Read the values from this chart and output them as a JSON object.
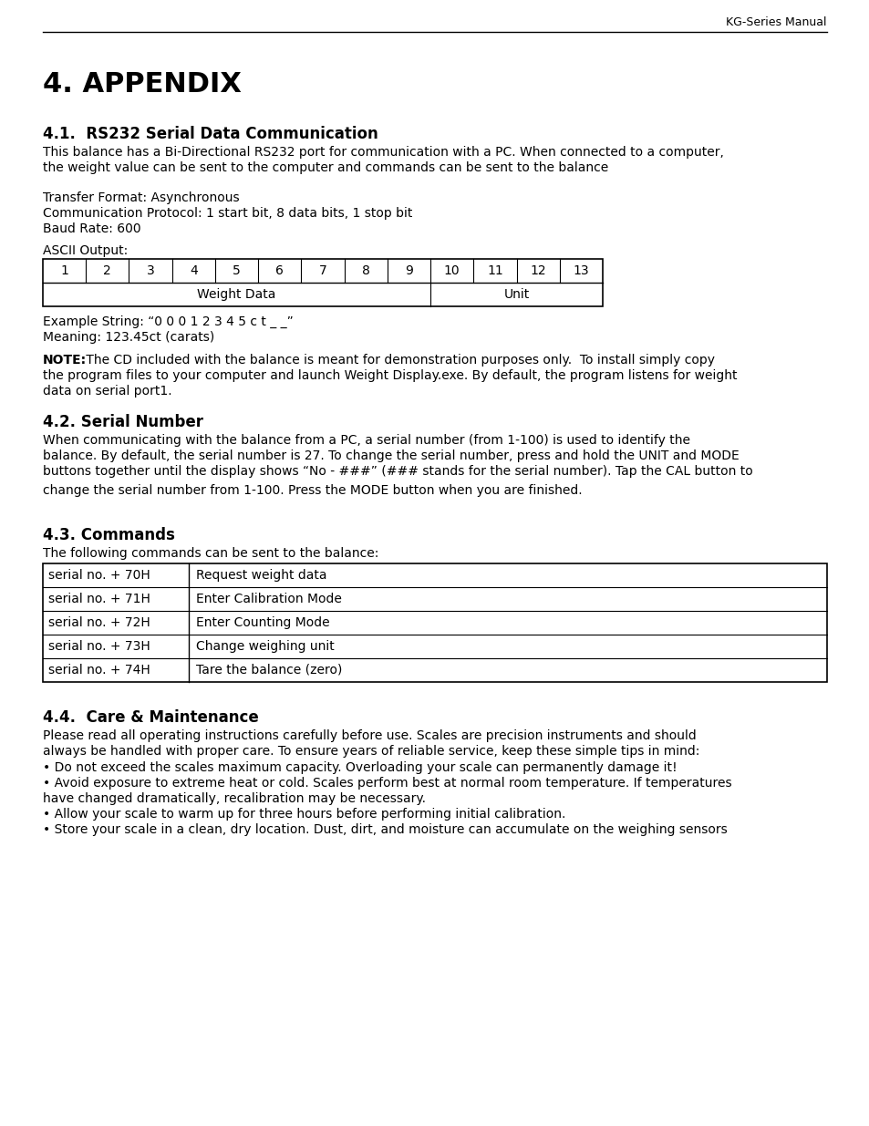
{
  "page_header": "KG-Series Manual",
  "title": "4. APPENDIX",
  "section_41_title": "4.1.  RS232 Serial Data Communication",
  "section_41_body1": "This balance has a Bi-Directional RS232 port for communication with a PC. When connected to a computer,",
  "section_41_body2": "the weight value can be sent to the computer and commands can be sent to the balance",
  "section_41_body3": "Transfer Format: Asynchronous",
  "section_41_body4": "Communication Protocol: 1 start bit, 8 data bits, 1 stop bit",
  "section_41_body5": "Baud Rate: 600",
  "ascii_label": "ASCII Output:",
  "ascii_cols": [
    "1",
    "2",
    "3",
    "4",
    "5",
    "6",
    "7",
    "8",
    "9",
    "10",
    "11",
    "12",
    "13"
  ],
  "ascii_weight_label": "Weight Data",
  "ascii_unit_label": "Unit",
  "example_string": "Example String: “0 0 0 1 2 3 4 5 c t _ _”",
  "meaning": "Meaning: 123.45ct (carats)",
  "note_bold": "NOTE:",
  "note_line1": " The CD included with the balance is meant for demonstration purposes only.  To install simply copy",
  "note_line2": "the program files to your computer and launch Weight Display.exe. By default, the program listens for weight",
  "note_line3": "data on serial port1.",
  "section_42_title": "4.2. Serial Number",
  "section_42_body1": "When communicating with the balance from a PC, a serial number (from 1-100) is used to identify the",
  "section_42_body2": "balance. By default, the serial number is 27. To change the serial number, press and hold the UNIT and MODE",
  "section_42_body3": "buttons together until the display shows “No - ###” (### stands for the serial number). Tap the CAL button to",
  "section_42_body4": "change the serial number from 1-100. Press the MODE button when you are finished.",
  "section_43_title": "4.3. Commands",
  "section_43_intro": "The following commands can be sent to the balance:",
  "commands": [
    [
      "serial no. + 70H",
      "Request weight data"
    ],
    [
      "serial no. + 71H",
      "Enter Calibration Mode"
    ],
    [
      "serial no. + 72H",
      "Enter Counting Mode"
    ],
    [
      "serial no. + 73H",
      "Change weighing unit"
    ],
    [
      "serial no. + 74H",
      "Tare the balance (zero)"
    ]
  ],
  "section_44_title": "4.4.  Care & Maintenance",
  "section_44_body1": "Please read all operating instructions carefully before use. Scales are precision instruments and should",
  "section_44_body2": "always be handled with proper care. To ensure years of reliable service, keep these simple tips in mind:",
  "section_44_bullet1": "• Do not exceed the scales maximum capacity. Overloading your scale can permanently damage it!",
  "section_44_bullet2a": "• Avoid exposure to extreme heat or cold. Scales perform best at normal room temperature. If temperatures",
  "section_44_bullet2b": "have changed dramatically, recalibration may be necessary.",
  "section_44_bullet3": "• Allow your scale to warm up for three hours before performing initial calibration.",
  "section_44_bullet4": "• Store your scale in a clean, dry location. Dust, dirt, and moisture can accumulate on the weighing sensors",
  "bg_color": "#ffffff",
  "text_color": "#000000"
}
